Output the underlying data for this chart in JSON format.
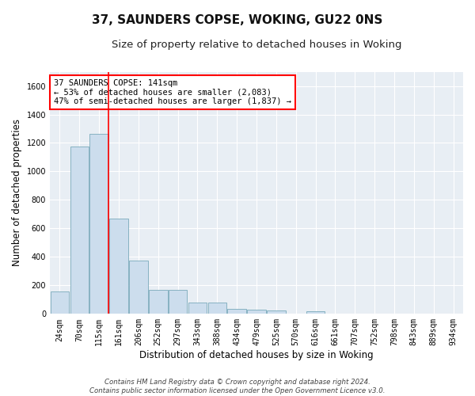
{
  "title": "37, SAUNDERS COPSE, WOKING, GU22 0NS",
  "subtitle": "Size of property relative to detached houses in Woking",
  "xlabel": "Distribution of detached houses by size in Woking",
  "ylabel": "Number of detached properties",
  "categories": [
    "24sqm",
    "70sqm",
    "115sqm",
    "161sqm",
    "206sqm",
    "252sqm",
    "297sqm",
    "343sqm",
    "388sqm",
    "434sqm",
    "479sqm",
    "525sqm",
    "570sqm",
    "616sqm",
    "661sqm",
    "707sqm",
    "752sqm",
    "798sqm",
    "843sqm",
    "889sqm",
    "934sqm"
  ],
  "values": [
    155,
    1175,
    1265,
    670,
    375,
    168,
    168,
    80,
    80,
    35,
    28,
    22,
    0,
    18,
    0,
    0,
    0,
    0,
    0,
    0,
    0
  ],
  "bar_color": "#ccdded",
  "bar_edge_color": "#7aaabb",
  "ylim": [
    0,
    1700
  ],
  "yticks": [
    0,
    200,
    400,
    600,
    800,
    1000,
    1200,
    1400,
    1600
  ],
  "red_line_index": 2,
  "annotation_line1": "37 SAUNDERS COPSE: 141sqm",
  "annotation_line2": "← 53% of detached houses are smaller (2,083)",
  "annotation_line3": "47% of semi-detached houses are larger (1,837) →",
  "footer_line1": "Contains HM Land Registry data © Crown copyright and database right 2024.",
  "footer_line2": "Contains public sector information licensed under the Open Government Licence v3.0.",
  "title_fontsize": 11,
  "subtitle_fontsize": 9.5,
  "axis_label_fontsize": 8.5,
  "tick_fontsize": 7,
  "background_color": "#ffffff",
  "plot_bg_color": "#e8eef4",
  "grid_color": "#ffffff"
}
